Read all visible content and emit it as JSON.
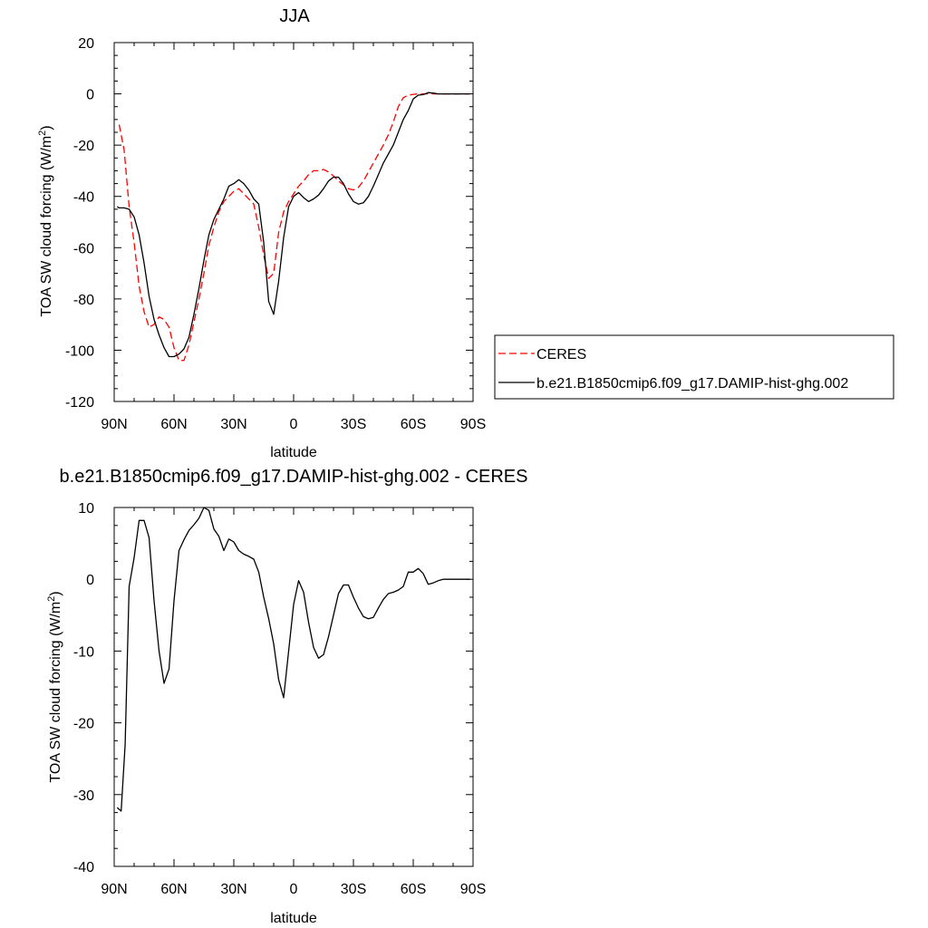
{
  "chart_data": [
    {
      "type": "line",
      "title": "JJA",
      "xlabel": "latitude",
      "ylabel": "TOA SW cloud forcing (W/m",
      "ylabel_sup": "2",
      "ylabel_close": ")",
      "xlim": [
        90,
        -90
      ],
      "ylim": [
        -120,
        20
      ],
      "x_ticks": [
        90,
        60,
        30,
        0,
        -30,
        -60,
        -90
      ],
      "x_tick_labels": [
        "90N",
        "60N",
        "30N",
        "0",
        "30S",
        "60S",
        "90S"
      ],
      "y_ticks": [
        20,
        0,
        -20,
        -40,
        -60,
        -80,
        -100,
        -120
      ],
      "y_tick_labels": [
        "20",
        "0",
        "-20",
        "-40",
        "-60",
        "-80",
        "-100",
        "-120"
      ],
      "legend_position": "right",
      "series": [
        {
          "name": "CERES",
          "color": "#ff0000",
          "dash": true,
          "x": [
            87.5,
            85,
            82.5,
            80,
            77.5,
            75,
            72.5,
            70,
            67.5,
            65,
            62.5,
            60,
            57.5,
            55,
            52.5,
            50,
            47.5,
            45,
            42.5,
            40,
            37.5,
            35,
            32.5,
            30,
            27.5,
            25,
            22.5,
            20,
            17.5,
            15,
            12.5,
            10,
            7.5,
            5,
            2.5,
            0,
            -2.5,
            -5,
            -7.5,
            -10,
            -12.5,
            -15,
            -17.5,
            -20,
            -22.5,
            -25,
            -27.5,
            -30,
            -32.5,
            -35,
            -37.5,
            -40,
            -42.5,
            -45,
            -47.5,
            -50,
            -52.5,
            -55,
            -57.5,
            -60,
            -62.5,
            -65,
            -67.5,
            -70,
            -72.5,
            -75,
            -77.5,
            -80,
            -82.5,
            -85,
            -87.5
          ],
          "values": [
            -12,
            -22,
            -44,
            -58,
            -75,
            -85,
            -91,
            -90,
            -87,
            -88,
            -91,
            -99,
            -104,
            -104,
            -98,
            -89,
            -80,
            -70,
            -59,
            -52,
            -46,
            -42,
            -40,
            -38,
            -37,
            -39,
            -41,
            -43,
            -52,
            -63,
            -72,
            -70,
            -54,
            -46,
            -42,
            -39,
            -36,
            -34,
            -31.5,
            -30,
            -30,
            -29.5,
            -30.5,
            -32,
            -34,
            -35.5,
            -37,
            -37.5,
            -36.5,
            -34,
            -30.5,
            -27,
            -23.5,
            -20,
            -16,
            -11,
            -5,
            -1.5,
            -0.5,
            -0.2,
            0,
            0,
            0,
            0,
            0,
            0,
            0,
            0,
            0,
            0,
            0
          ]
        },
        {
          "name": "b.e21.B1850cmip6.f09_g17.DAMIP-hist-ghg.002",
          "color": "#000000",
          "dash": false,
          "x": [
            88.5,
            87.5,
            85,
            82.5,
            80,
            77.5,
            75,
            72.5,
            70,
            67.5,
            65,
            62.5,
            60,
            57.5,
            55,
            52.5,
            50,
            47.5,
            45,
            42.5,
            40,
            37.5,
            35,
            32.5,
            30,
            27.5,
            25,
            22.5,
            20,
            17.5,
            15,
            12.5,
            10,
            7.5,
            5,
            2.5,
            0,
            -2.5,
            -5,
            -7.5,
            -10,
            -12.5,
            -15,
            -17.5,
            -20,
            -22.5,
            -25,
            -27.5,
            -30,
            -32.5,
            -35,
            -37.5,
            -40,
            -42.5,
            -45,
            -47.5,
            -50,
            -52.5,
            -55,
            -57.5,
            -60,
            -62.5,
            -65,
            -67.5,
            -70,
            -72.5,
            -75,
            -77.5,
            -80,
            -82.5,
            -85,
            -87.5,
            -88.5
          ],
          "values": [
            -44,
            -44.5,
            -44.5,
            -45,
            -48,
            -55,
            -66,
            -79,
            -88,
            -94,
            -99,
            -102.5,
            -102.5,
            -101.5,
            -99.5,
            -95,
            -86,
            -76,
            -65,
            -55,
            -49,
            -45,
            -41,
            -36,
            -35,
            -33.5,
            -35,
            -37.5,
            -41,
            -43,
            -58,
            -81,
            -86,
            -73,
            -56,
            -44,
            -40,
            -38.5,
            -40.5,
            -42,
            -41,
            -39.5,
            -37,
            -34,
            -32.5,
            -32.5,
            -35,
            -39,
            -42,
            -43,
            -42.5,
            -40,
            -36,
            -31.5,
            -27,
            -23.5,
            -20,
            -15,
            -10,
            -6.5,
            -2,
            -0.5,
            -0.3,
            0.5,
            0.3,
            0,
            0,
            0,
            0,
            0,
            0,
            0,
            0
          ]
        }
      ]
    },
    {
      "type": "line",
      "title": "b.e21.B1850cmip6.f09_g17.DAMIP-hist-ghg.002 - CERES",
      "xlabel": "latitude",
      "ylabel": "TOA SW cloud forcing (W/m",
      "ylabel_sup": "2",
      "ylabel_close": ")",
      "xlim": [
        90,
        -90
      ],
      "ylim": [
        -40,
        10
      ],
      "x_ticks": [
        90,
        60,
        30,
        0,
        -30,
        -60,
        -90
      ],
      "x_tick_labels": [
        "90N",
        "60N",
        "30N",
        "0",
        "30S",
        "60S",
        "90S"
      ],
      "y_ticks": [
        10,
        0,
        -10,
        -20,
        -30,
        -40
      ],
      "y_tick_labels": [
        "10",
        "0",
        "-10",
        "-20",
        "-30",
        "-40"
      ],
      "series": [
        {
          "color": "#000000",
          "dash": false,
          "x": [
            88.5,
            86.5,
            84.5,
            82.5,
            80,
            77.5,
            75,
            72.5,
            70,
            67.5,
            65,
            62.5,
            60,
            57.5,
            55,
            52.5,
            50,
            47.5,
            45,
            42.5,
            40,
            37.5,
            35,
            32.5,
            30,
            27.5,
            25,
            22.5,
            20,
            17.5,
            15,
            12.5,
            10,
            7.5,
            5,
            2.5,
            0,
            -2.5,
            -5,
            -7.5,
            -10,
            -12.5,
            -15,
            -17.5,
            -20,
            -22.5,
            -25,
            -27.5,
            -30,
            -32.5,
            -35,
            -37.5,
            -40,
            -42.5,
            -45,
            -47.5,
            -50,
            -52.5,
            -55,
            -57.5,
            -60,
            -62.5,
            -65,
            -67.5,
            -70,
            -72.5,
            -75,
            -77.5,
            -80,
            -82.5,
            -85,
            -87.5,
            -88.5
          ],
          "values": [
            -31.8,
            -32.3,
            -23,
            -1,
            3,
            8.2,
            8.2,
            5.8,
            -3,
            -10,
            -14.5,
            -12.5,
            -3,
            4,
            5.5,
            6.8,
            7.6,
            8.5,
            10,
            9.6,
            7,
            6,
            4,
            5.6,
            5.2,
            4,
            3.5,
            3.2,
            2.8,
            1,
            -2.5,
            -5.5,
            -9,
            -14,
            -16.5,
            -10,
            -3.5,
            -0.2,
            -1.8,
            -6,
            -9.5,
            -11,
            -10.5,
            -8,
            -5,
            -2,
            -0.8,
            -0.8,
            -2.5,
            -4,
            -5.2,
            -5.5,
            -5.3,
            -4,
            -2.8,
            -2,
            -1.8,
            -1.5,
            -1,
            1,
            1,
            1.5,
            0.8,
            -0.7,
            -0.5,
            -0.2,
            0,
            0,
            0,
            0,
            0,
            0,
            0
          ]
        }
      ]
    }
  ]
}
